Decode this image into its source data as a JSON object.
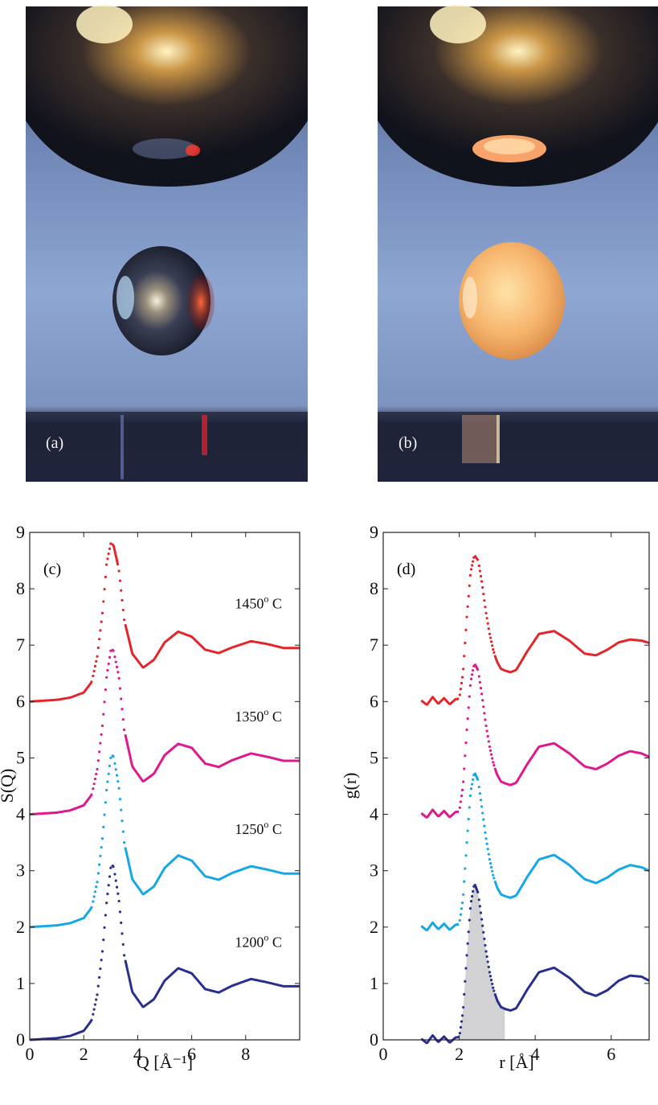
{
  "photos": [
    {
      "label": "(a)",
      "label_color": "#f2f2f2"
    },
    {
      "label": "(b)",
      "label_color": "#f2f2f2"
    }
  ],
  "chart_data": [
    {
      "type": "line",
      "panel_label": "(c)",
      "xlabel": "Q [Å⁻¹]",
      "ylabel": "S(Q)",
      "xlim": [
        0,
        10
      ],
      "ylim": [
        0,
        9
      ],
      "xticks": [
        0,
        2,
        4,
        6,
        8
      ],
      "yticks": [
        0,
        1,
        2,
        3,
        4,
        5,
        6,
        7,
        8,
        9
      ],
      "grid": false,
      "series": [
        {
          "name": "1200° C",
          "label_main": "1200",
          "label_deg": "o",
          "label_unit": " C",
          "label_pos": [
            7.6,
            1.65
          ],
          "color": "#2a2f8f",
          "offset": 0,
          "x": [
            0,
            1,
            1.5,
            2,
            2.3,
            2.5,
            2.7,
            2.85,
            3.0,
            3.1,
            3.3,
            3.5,
            3.8,
            4.2,
            4.6,
            5.0,
            5.5,
            6.0,
            6.5,
            7.0,
            7.5,
            8.2,
            8.8,
            9.4,
            10
          ],
          "y": [
            0,
            0.03,
            0.07,
            0.16,
            0.35,
            0.8,
            1.6,
            2.45,
            3.05,
            3.1,
            2.5,
            1.5,
            0.85,
            0.58,
            0.72,
            1.05,
            1.27,
            1.18,
            0.9,
            0.84,
            0.96,
            1.08,
            1.02,
            0.95,
            0.95
          ]
        },
        {
          "name": "1250° C",
          "label_main": "1250",
          "label_deg": "o",
          "label_unit": " C",
          "label_pos": [
            7.6,
            3.65
          ],
          "color": "#16a8e4",
          "offset": 2,
          "x": [
            0,
            1,
            1.5,
            2,
            2.3,
            2.5,
            2.7,
            2.85,
            3.0,
            3.1,
            3.3,
            3.5,
            3.8,
            4.2,
            4.6,
            5.0,
            5.5,
            6.0,
            6.5,
            7.0,
            7.5,
            8.2,
            8.8,
            9.4,
            10
          ],
          "y": [
            0,
            0.03,
            0.07,
            0.16,
            0.35,
            0.8,
            1.6,
            2.45,
            3.0,
            3.05,
            2.5,
            1.5,
            0.85,
            0.58,
            0.72,
            1.05,
            1.27,
            1.18,
            0.9,
            0.84,
            0.96,
            1.08,
            1.02,
            0.95,
            0.95
          ]
        },
        {
          "name": "1350° C",
          "label_main": "1350",
          "label_deg": "o",
          "label_unit": " C",
          "label_pos": [
            7.6,
            5.65
          ],
          "color": "#e0188e",
          "offset": 4,
          "x": [
            0,
            1,
            1.5,
            2,
            2.3,
            2.5,
            2.7,
            2.85,
            3.0,
            3.1,
            3.3,
            3.5,
            3.8,
            4.2,
            4.6,
            5.0,
            5.5,
            6.0,
            6.5,
            7.0,
            7.5,
            8.2,
            8.8,
            9.4,
            10
          ],
          "y": [
            0,
            0.03,
            0.07,
            0.16,
            0.35,
            0.8,
            1.6,
            2.45,
            2.9,
            2.92,
            2.45,
            1.5,
            0.85,
            0.58,
            0.72,
            1.05,
            1.25,
            1.18,
            0.9,
            0.84,
            0.96,
            1.08,
            1.02,
            0.95,
            0.95
          ]
        },
        {
          "name": "1450° C",
          "label_main": "1450",
          "label_deg": "o",
          "label_unit": " C",
          "label_pos": [
            7.6,
            7.65
          ],
          "color": "#e3262b",
          "offset": 6,
          "x": [
            0,
            1,
            1.5,
            2,
            2.3,
            2.5,
            2.7,
            2.85,
            3.0,
            3.1,
            3.3,
            3.5,
            3.8,
            4.2,
            4.6,
            5.0,
            5.5,
            6.0,
            6.5,
            7.0,
            7.5,
            8.2,
            8.8,
            9.4,
            10
          ],
          "y": [
            0,
            0.03,
            0.07,
            0.16,
            0.35,
            0.8,
            1.6,
            2.45,
            2.8,
            2.78,
            2.35,
            1.45,
            0.85,
            0.6,
            0.74,
            1.05,
            1.24,
            1.15,
            0.92,
            0.86,
            0.96,
            1.07,
            1.02,
            0.95,
            0.95
          ]
        }
      ]
    },
    {
      "type": "line",
      "panel_label": "(d)",
      "xlabel": "r [Å]",
      "ylabel": "g(r)",
      "xlim": [
        0,
        7
      ],
      "ylim": [
        0,
        9
      ],
      "xticks": [
        0,
        2,
        4,
        6
      ],
      "yticks": [
        0,
        1,
        2,
        3,
        4,
        5,
        6,
        7,
        8,
        9
      ],
      "grid": false,
      "shaded_region": {
        "series_index": 0,
        "x_start": 2.0,
        "x_end": 3.2,
        "color": "#d2d2d4"
      },
      "series": [
        {
          "name": "1200° C",
          "color": "#2a2f8f",
          "offset": 0,
          "x": [
            1.0,
            1.15,
            1.3,
            1.45,
            1.6,
            1.75,
            1.9,
            2.0,
            2.1,
            2.2,
            2.3,
            2.4,
            2.5,
            2.6,
            2.7,
            2.8,
            2.9,
            3.0,
            3.1,
            3.2,
            3.35,
            3.5,
            3.8,
            4.1,
            4.5,
            4.9,
            5.3,
            5.6,
            5.9,
            6.2,
            6.5,
            6.8,
            7.0
          ],
          "y": [
            0.02,
            -0.06,
            0.08,
            -0.04,
            0.06,
            -0.05,
            0.04,
            0.05,
            0.5,
            1.5,
            2.4,
            2.78,
            2.6,
            2.1,
            1.6,
            1.2,
            0.9,
            0.7,
            0.58,
            0.55,
            0.52,
            0.56,
            0.9,
            1.2,
            1.28,
            1.1,
            0.85,
            0.78,
            0.88,
            1.05,
            1.14,
            1.12,
            1.05
          ]
        },
        {
          "name": "1250° C",
          "color": "#16a8e4",
          "offset": 2,
          "x": [
            1.0,
            1.15,
            1.3,
            1.45,
            1.6,
            1.75,
            1.9,
            2.0,
            2.1,
            2.2,
            2.3,
            2.4,
            2.5,
            2.6,
            2.7,
            2.8,
            2.9,
            3.0,
            3.1,
            3.2,
            3.35,
            3.5,
            3.8,
            4.1,
            4.5,
            4.9,
            5.3,
            5.6,
            5.9,
            6.2,
            6.5,
            6.8,
            7.0
          ],
          "y": [
            0.02,
            -0.06,
            0.08,
            -0.04,
            0.06,
            -0.05,
            0.04,
            0.05,
            0.5,
            1.5,
            2.4,
            2.75,
            2.6,
            2.1,
            1.6,
            1.2,
            0.9,
            0.7,
            0.58,
            0.55,
            0.52,
            0.56,
            0.9,
            1.2,
            1.28,
            1.1,
            0.85,
            0.78,
            0.88,
            1.02,
            1.1,
            1.06,
            1.0
          ]
        },
        {
          "name": "1350° C",
          "color": "#e0188e",
          "offset": 4,
          "x": [
            1.0,
            1.15,
            1.3,
            1.45,
            1.6,
            1.75,
            1.9,
            2.0,
            2.1,
            2.2,
            2.3,
            2.4,
            2.5,
            2.6,
            2.7,
            2.8,
            2.9,
            3.0,
            3.1,
            3.2,
            3.35,
            3.5,
            3.8,
            4.1,
            4.5,
            4.9,
            5.3,
            5.6,
            5.9,
            6.2,
            6.5,
            6.8,
            7.0
          ],
          "y": [
            0.02,
            -0.06,
            0.08,
            -0.04,
            0.06,
            -0.05,
            0.04,
            0.05,
            0.5,
            1.5,
            2.35,
            2.68,
            2.55,
            2.1,
            1.6,
            1.2,
            0.9,
            0.7,
            0.58,
            0.55,
            0.52,
            0.56,
            0.9,
            1.2,
            1.26,
            1.08,
            0.85,
            0.8,
            0.9,
            1.04,
            1.12,
            1.08,
            1.02
          ]
        },
        {
          "name": "1450° C",
          "color": "#e3262b",
          "offset": 6,
          "x": [
            1.0,
            1.15,
            1.3,
            1.45,
            1.6,
            1.75,
            1.9,
            2.0,
            2.1,
            2.2,
            2.3,
            2.4,
            2.5,
            2.6,
            2.7,
            2.8,
            2.9,
            3.0,
            3.1,
            3.2,
            3.35,
            3.5,
            3.8,
            4.1,
            4.5,
            4.9,
            5.3,
            5.6,
            5.9,
            6.2,
            6.5,
            6.8,
            7.0
          ],
          "y": [
            0.02,
            -0.06,
            0.08,
            -0.04,
            0.06,
            -0.05,
            0.04,
            0.05,
            0.5,
            1.5,
            2.3,
            2.6,
            2.5,
            2.1,
            1.6,
            1.2,
            0.9,
            0.7,
            0.58,
            0.55,
            0.52,
            0.56,
            0.9,
            1.2,
            1.25,
            1.08,
            0.85,
            0.82,
            0.92,
            1.05,
            1.1,
            1.08,
            1.04
          ]
        }
      ]
    }
  ]
}
